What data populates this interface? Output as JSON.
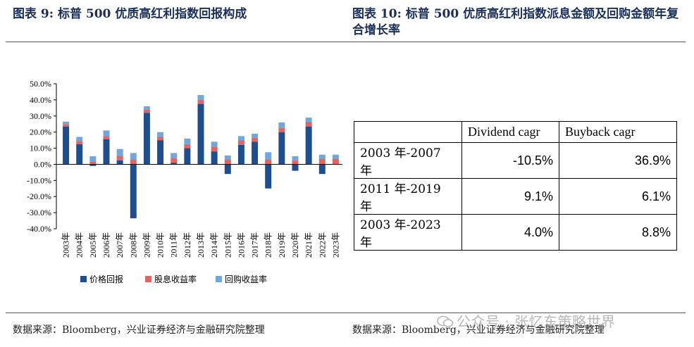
{
  "header": {
    "left_title": "图表 9:  标普 500 优质高红利指数回报构成",
    "right_title": "图表 10:  标普 500 优质高红利指数派息金额及回购金额年复合增长率"
  },
  "footer": {
    "left_source": "数据来源：Bloomberg，兴业证券经济与金融研究院整理",
    "right_source": "数据来源：Bloomberg，兴业证券经济与金融研究院整理",
    "watermark": "公众号 · 张忆东策略世界"
  },
  "colors": {
    "price": "#1f4e8c",
    "dividend": "#e06666",
    "buyback": "#6fa8dc"
  },
  "chart_data": [
    {
      "type": "bar",
      "stacked": true,
      "categories": [
        "2003年",
        "2004年",
        "2005年",
        "2006年",
        "2007年",
        "2008年",
        "2009年",
        "2010年",
        "2011年",
        "2012年",
        "2013年",
        "2014年",
        "2015年",
        "2016年",
        "2017年",
        "2018年",
        "2019年",
        "2020年",
        "2021年",
        "2022年",
        "2023年"
      ],
      "series": [
        {
          "name": "价格回报",
          "values": [
            23.5,
            12.5,
            -1.0,
            15.5,
            2.5,
            -33.5,
            32.0,
            15.0,
            1.0,
            10.0,
            37.5,
            8.0,
            -6.0,
            12.0,
            14.0,
            -15.0,
            20.0,
            -4.0,
            23.5,
            -6.0,
            0.0
          ]
        },
        {
          "name": "股息收益率",
          "values": [
            1.5,
            2.0,
            1.5,
            2.0,
            3.0,
            3.0,
            2.0,
            2.0,
            3.0,
            2.5,
            2.5,
            3.0,
            3.0,
            3.0,
            2.5,
            3.0,
            2.5,
            2.5,
            3.0,
            3.5,
            3.5
          ]
        },
        {
          "name": "回购收益率",
          "values": [
            1.5,
            2.5,
            3.5,
            3.5,
            4.0,
            4.0,
            2.0,
            3.0,
            3.0,
            3.5,
            3.0,
            3.0,
            2.5,
            2.5,
            2.5,
            4.5,
            3.5,
            2.5,
            2.5,
            2.5,
            2.5
          ]
        }
      ],
      "ylim": [
        -40,
        50
      ],
      "yticks": [
        "50.0%",
        "40.0%",
        "30.0%",
        "20.0%",
        "10.0%",
        "0.0%",
        "-10.0%",
        "-20.0%",
        "-30.0%",
        "-40.0%"
      ],
      "legend_position": "bottom",
      "grid": false
    },
    {
      "type": "table",
      "columns": [
        "",
        "Dividend cagr",
        "Buyback cagr"
      ],
      "rows": [
        [
          "2003 年-2007 年",
          "-10.5%",
          "36.9%"
        ],
        [
          "2011 年-2019 年",
          "9.1%",
          "6.1%"
        ],
        [
          "2003 年-2023 年",
          "4.0%",
          "8.8%"
        ]
      ]
    }
  ]
}
